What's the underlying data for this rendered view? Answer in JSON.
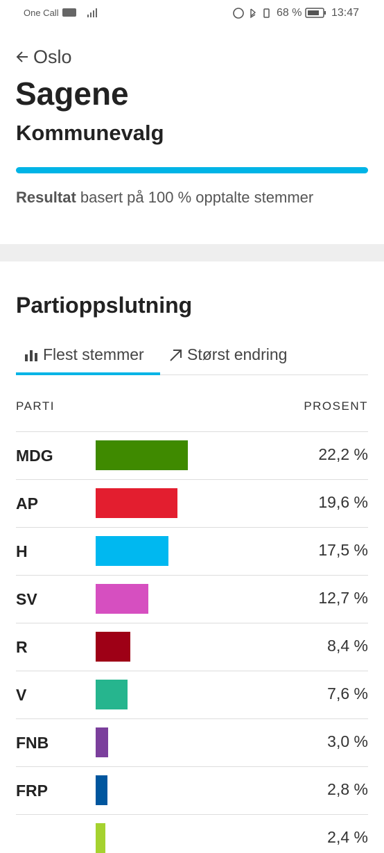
{
  "status_bar": {
    "carrier": "One Call",
    "battery": "68 %",
    "time": "13:47"
  },
  "header": {
    "back": "Oslo",
    "title": "Sagene",
    "subtitle": "Kommunevalg",
    "result_bold": "Resultat",
    "result_text": "basert på 100 % opptalte stemmer"
  },
  "section": {
    "title": "Partioppslutning",
    "tabs": [
      "Flest stemmer",
      "Størst endring"
    ]
  },
  "table": {
    "columns": [
      "PARTI",
      "PROSENT"
    ],
    "parties": [
      "MDG",
      "AP",
      "H",
      "SV",
      "R",
      "V",
      "FNB",
      "FRP",
      null
    ],
    "values": [
      22.2,
      19.6,
      17.5,
      12.7,
      8.4,
      7.6,
      3.0,
      2.8,
      2.4
    ],
    "value_labels": [
      "22,2 %",
      "19,6 %",
      "17,5 %",
      "12,7 %",
      "8,4 %",
      "7,6 %",
      "3,0 %",
      "2,8 %",
      "2,4 %"
    ],
    "colors": [
      "#3f8a00",
      "#e31e2f",
      "#00b8f0",
      "#d64fc0",
      "#9e0016",
      "#26b58e",
      "#7b3f9c",
      "#00569e",
      "#a5d22f"
    ]
  }
}
